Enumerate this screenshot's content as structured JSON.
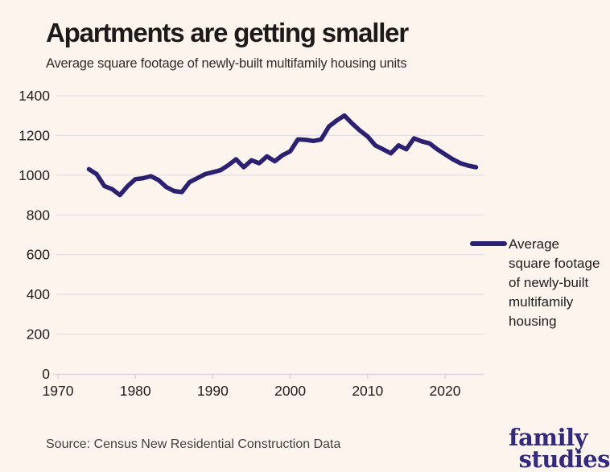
{
  "header": {
    "title": "Apartments are getting smaller",
    "subtitle": "Average square footage of newly-built multifamily housing units"
  },
  "chart_data": {
    "type": "line",
    "title": "Apartments are getting smaller",
    "subtitle": "Average square footage of newly-built multifamily housing units",
    "x": [
      1974,
      1975,
      1976,
      1977,
      1978,
      1979,
      1980,
      1981,
      1982,
      1983,
      1984,
      1985,
      1986,
      1987,
      1988,
      1989,
      1990,
      1991,
      1992,
      1993,
      1994,
      1995,
      1996,
      1997,
      1998,
      1999,
      2000,
      2001,
      2002,
      2003,
      2004,
      2005,
      2006,
      2007,
      2008,
      2009,
      2010,
      2011,
      2012,
      2013,
      2014,
      2015,
      2016,
      2017,
      2018,
      2019,
      2020,
      2021,
      2022,
      2023,
      2024
    ],
    "series": [
      {
        "name": "Average square footage of newly-built multifamily housing",
        "color": "#2b2173",
        "values": [
          1030,
          1005,
          945,
          930,
          900,
          945,
          980,
          985,
          995,
          975,
          940,
          920,
          915,
          965,
          985,
          1005,
          1015,
          1025,
          1050,
          1080,
          1040,
          1075,
          1060,
          1095,
          1070,
          1100,
          1120,
          1180,
          1178,
          1172,
          1180,
          1245,
          1275,
          1300,
          1260,
          1225,
          1195,
          1150,
          1130,
          1110,
          1150,
          1130,
          1185,
          1170,
          1160,
          1130,
          1105,
          1080,
          1060,
          1048,
          1040
        ]
      }
    ],
    "x_ticks": [
      1970,
      1980,
      1990,
      2000,
      2010,
      2020
    ],
    "y_ticks": [
      0,
      200,
      400,
      600,
      800,
      1000,
      1200,
      1400
    ],
    "x_range": [
      1970,
      2025
    ],
    "y_range": [
      0,
      1400
    ],
    "grid": "horizontal-only",
    "legend_position": "right-middle",
    "legend_label": "Average square footage of newly-built multifamily housing"
  },
  "footer": {
    "source": "Source: Census New Residential Construction Data",
    "logo_line1": "family",
    "logo_line2": "studies"
  },
  "colors": {
    "background": "#fdf4ee",
    "line": "#2b2173",
    "gridline": "#e3e1e8",
    "axis": "#d8d4de",
    "tick_text": "#1e1d1b",
    "logo": "#312a80"
  }
}
